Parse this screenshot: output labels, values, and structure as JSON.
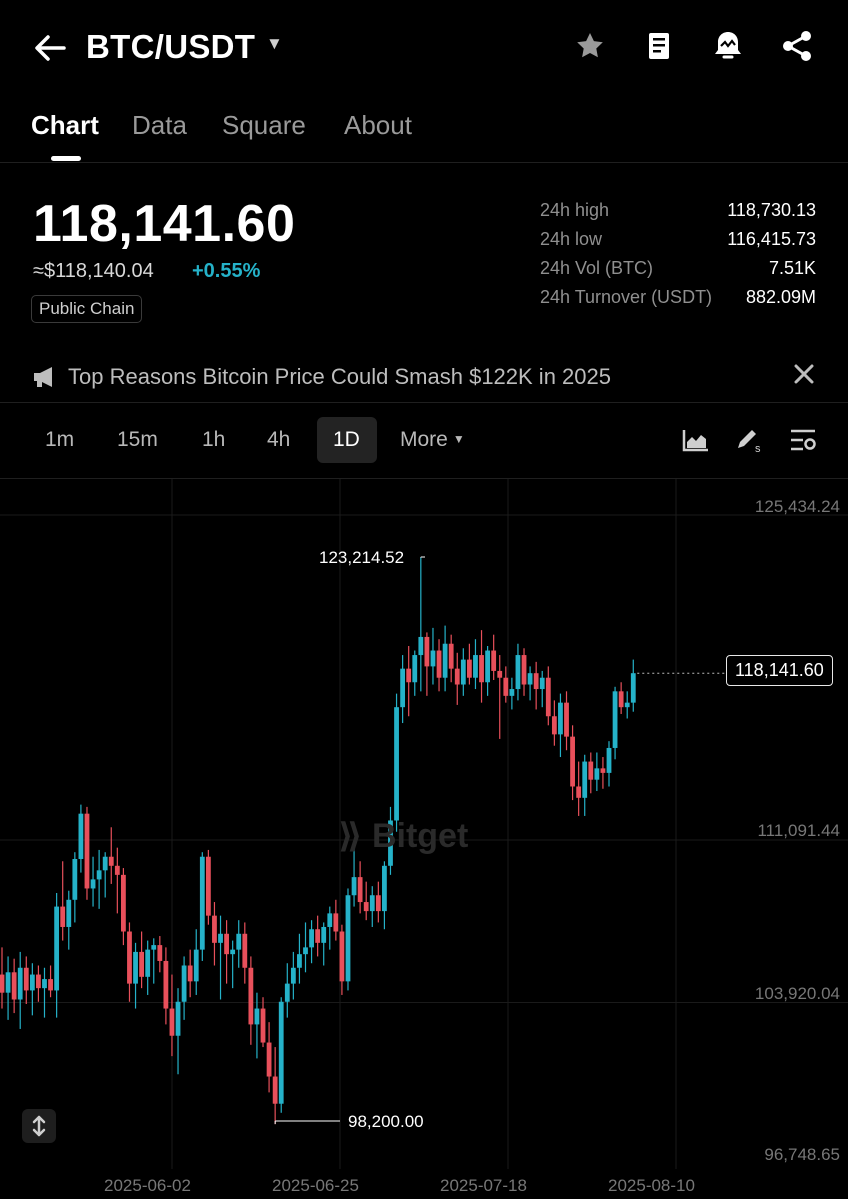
{
  "header": {
    "pair": "BTC/USDT",
    "icons": [
      "back-arrow-icon",
      "dropdown-caret-icon",
      "star-icon",
      "notes-icon",
      "alert-icon",
      "share-icon"
    ]
  },
  "tabs": [
    {
      "label": "Chart",
      "active": true
    },
    {
      "label": "Data",
      "active": false
    },
    {
      "label": "Square",
      "active": false
    },
    {
      "label": "About",
      "active": false
    }
  ],
  "price": {
    "last": "118,141.60",
    "usd_equiv": "≈$118,140.04",
    "change": "+0.55%",
    "tag": "Public Chain"
  },
  "stats": [
    {
      "label": "24h high",
      "value": "118,730.13"
    },
    {
      "label": "24h low",
      "value": "116,415.73"
    },
    {
      "label": "24h Vol (BTC)",
      "value": "7.51K"
    },
    {
      "label": "24h Turnover (USDT)",
      "value": "882.09M"
    }
  ],
  "news": {
    "headline": "Top Reasons Bitcoin Price Could Smash $122K in 2025"
  },
  "intervals": [
    {
      "label": "1m",
      "active": false
    },
    {
      "label": "15m",
      "active": false
    },
    {
      "label": "1h",
      "active": false
    },
    {
      "label": "4h",
      "active": false
    },
    {
      "label": "1D",
      "active": true
    }
  ],
  "more_label": "More",
  "watermark": "Bitget",
  "colors": {
    "up": "#25b2c9",
    "down": "#e8505b",
    "bg": "#000000",
    "grid": "#1a1a1a"
  },
  "chart_data": {
    "type": "candlestick",
    "y_axis_ticks": [
      "125,434.24",
      "111,091.44",
      "103,920.04",
      "96,748.65"
    ],
    "x_axis_ticks": [
      "2025-06-02",
      "2025-06-25",
      "2025-07-18",
      "2025-08-10"
    ],
    "ylim": [
      96748.65,
      125434.24
    ],
    "current_price_label": "118,141.60",
    "max_annotation": "123,214.52",
    "min_annotation": "98,200.00",
    "candles": [
      {
        "o": 104800,
        "h": 106000,
        "l": 103300,
        "c": 104000
      },
      {
        "o": 104000,
        "h": 105600,
        "l": 102800,
        "c": 104900
      },
      {
        "o": 104900,
        "h": 105500,
        "l": 103100,
        "c": 103700
      },
      {
        "o": 103700,
        "h": 105800,
        "l": 102400,
        "c": 105100
      },
      {
        "o": 105100,
        "h": 105600,
        "l": 103500,
        "c": 104100
      },
      {
        "o": 104100,
        "h": 105300,
        "l": 103000,
        "c": 104800
      },
      {
        "o": 104800,
        "h": 105200,
        "l": 103600,
        "c": 104200
      },
      {
        "o": 104200,
        "h": 105100,
        "l": 102900,
        "c": 104600
      },
      {
        "o": 104600,
        "h": 105200,
        "l": 103800,
        "c": 104100
      },
      {
        "o": 104100,
        "h": 108400,
        "l": 102900,
        "c": 107800
      },
      {
        "o": 107800,
        "h": 109800,
        "l": 106300,
        "c": 106900
      },
      {
        "o": 106900,
        "h": 108500,
        "l": 105900,
        "c": 108100
      },
      {
        "o": 108100,
        "h": 110200,
        "l": 107100,
        "c": 109900
      },
      {
        "o": 109900,
        "h": 112300,
        "l": 109300,
        "c": 111900
      },
      {
        "o": 111900,
        "h": 112200,
        "l": 108100,
        "c": 108600
      },
      {
        "o": 108600,
        "h": 110000,
        "l": 107800,
        "c": 109000
      },
      {
        "o": 109000,
        "h": 110300,
        "l": 107700,
        "c": 109400
      },
      {
        "o": 109400,
        "h": 110200,
        "l": 108200,
        "c": 110000
      },
      {
        "o": 110000,
        "h": 111300,
        "l": 108800,
        "c": 109600
      },
      {
        "o": 109600,
        "h": 110400,
        "l": 107500,
        "c": 109200
      },
      {
        "o": 109200,
        "h": 109500,
        "l": 106100,
        "c": 106700
      },
      {
        "o": 106700,
        "h": 107100,
        "l": 103600,
        "c": 104400
      },
      {
        "o": 104400,
        "h": 106200,
        "l": 103300,
        "c": 105800
      },
      {
        "o": 105800,
        "h": 106700,
        "l": 104200,
        "c": 104700
      },
      {
        "o": 104700,
        "h": 106300,
        "l": 103900,
        "c": 105900
      },
      {
        "o": 105900,
        "h": 106400,
        "l": 104400,
        "c": 106100
      },
      {
        "o": 106100,
        "h": 106500,
        "l": 104900,
        "c": 105400
      },
      {
        "o": 105400,
        "h": 106000,
        "l": 102600,
        "c": 103300
      },
      {
        "o": 103300,
        "h": 104800,
        "l": 101200,
        "c": 102100
      },
      {
        "o": 102100,
        "h": 104200,
        "l": 100400,
        "c": 103600
      },
      {
        "o": 103600,
        "h": 105600,
        "l": 102800,
        "c": 105200
      },
      {
        "o": 105200,
        "h": 105900,
        "l": 103800,
        "c": 104500
      },
      {
        "o": 104500,
        "h": 106800,
        "l": 103900,
        "c": 105900
      },
      {
        "o": 105900,
        "h": 110200,
        "l": 105400,
        "c": 110000
      },
      {
        "o": 110000,
        "h": 110300,
        "l": 107000,
        "c": 107400
      },
      {
        "o": 107400,
        "h": 108000,
        "l": 105200,
        "c": 106200
      },
      {
        "o": 106200,
        "h": 107400,
        "l": 103700,
        "c": 106600
      },
      {
        "o": 106600,
        "h": 107200,
        "l": 104400,
        "c": 105700
      },
      {
        "o": 105700,
        "h": 106300,
        "l": 104200,
        "c": 105900
      },
      {
        "o": 105900,
        "h": 107200,
        "l": 105100,
        "c": 106600
      },
      {
        "o": 106600,
        "h": 107100,
        "l": 104400,
        "c": 105100
      },
      {
        "o": 105100,
        "h": 105600,
        "l": 101700,
        "c": 102600
      },
      {
        "o": 102600,
        "h": 104000,
        "l": 101100,
        "c": 103300
      },
      {
        "o": 103300,
        "h": 103800,
        "l": 101600,
        "c": 101800
      },
      {
        "o": 101800,
        "h": 102700,
        "l": 99600,
        "c": 100300
      },
      {
        "o": 100300,
        "h": 101600,
        "l": 98200,
        "c": 99100
      },
      {
        "o": 99100,
        "h": 103800,
        "l": 98700,
        "c": 103600
      },
      {
        "o": 103600,
        "h": 105300,
        "l": 102900,
        "c": 104400
      },
      {
        "o": 104400,
        "h": 105800,
        "l": 103700,
        "c": 105100
      },
      {
        "o": 105100,
        "h": 106600,
        "l": 104400,
        "c": 105700
      },
      {
        "o": 105700,
        "h": 107100,
        "l": 104900,
        "c": 106000
      },
      {
        "o": 106000,
        "h": 107200,
        "l": 105300,
        "c": 106800
      },
      {
        "o": 106800,
        "h": 107400,
        "l": 105600,
        "c": 106200
      },
      {
        "o": 106200,
        "h": 107100,
        "l": 105200,
        "c": 106900
      },
      {
        "o": 106900,
        "h": 107800,
        "l": 105900,
        "c": 107500
      },
      {
        "o": 107500,
        "h": 108100,
        "l": 106300,
        "c": 106700
      },
      {
        "o": 106700,
        "h": 107000,
        "l": 103900,
        "c": 104500
      },
      {
        "o": 104500,
        "h": 108600,
        "l": 104100,
        "c": 108300
      },
      {
        "o": 108300,
        "h": 110400,
        "l": 107800,
        "c": 109100
      },
      {
        "o": 109100,
        "h": 109800,
        "l": 107500,
        "c": 108000
      },
      {
        "o": 108000,
        "h": 108900,
        "l": 107200,
        "c": 107600
      },
      {
        "o": 107600,
        "h": 108700,
        "l": 106900,
        "c": 108300
      },
      {
        "o": 108300,
        "h": 108900,
        "l": 107100,
        "c": 107600
      },
      {
        "o": 107600,
        "h": 109800,
        "l": 106800,
        "c": 109600
      },
      {
        "o": 109600,
        "h": 112200,
        "l": 109200,
        "c": 111600
      },
      {
        "o": 111600,
        "h": 117200,
        "l": 111100,
        "c": 116600
      },
      {
        "o": 116600,
        "h": 118900,
        "l": 115900,
        "c": 118300
      },
      {
        "o": 118300,
        "h": 119300,
        "l": 116200,
        "c": 117700
      },
      {
        "o": 117700,
        "h": 119100,
        "l": 117100,
        "c": 118900
      },
      {
        "o": 118900,
        "h": 123200,
        "l": 117300,
        "c": 119700
      },
      {
        "o": 119700,
        "h": 119900,
        "l": 117100,
        "c": 118400
      },
      {
        "o": 118400,
        "h": 120100,
        "l": 117600,
        "c": 119100
      },
      {
        "o": 119100,
        "h": 119600,
        "l": 117300,
        "c": 117900
      },
      {
        "o": 117900,
        "h": 120200,
        "l": 117300,
        "c": 119400
      },
      {
        "o": 119400,
        "h": 119800,
        "l": 117700,
        "c": 118300
      },
      {
        "o": 118300,
        "h": 119000,
        "l": 116700,
        "c": 117600
      },
      {
        "o": 117600,
        "h": 119200,
        "l": 117100,
        "c": 118700
      },
      {
        "o": 118700,
        "h": 119400,
        "l": 117600,
        "c": 117900
      },
      {
        "o": 117900,
        "h": 119600,
        "l": 117400,
        "c": 118900
      },
      {
        "o": 118900,
        "h": 120000,
        "l": 116800,
        "c": 117700
      },
      {
        "o": 117700,
        "h": 119300,
        "l": 117100,
        "c": 119100
      },
      {
        "o": 119100,
        "h": 119800,
        "l": 117800,
        "c": 118200
      },
      {
        "o": 118200,
        "h": 118900,
        "l": 115200,
        "c": 117900
      },
      {
        "o": 117900,
        "h": 118400,
        "l": 116800,
        "c": 117100
      },
      {
        "o": 117100,
        "h": 117900,
        "l": 116500,
        "c": 117400
      },
      {
        "o": 117400,
        "h": 119400,
        "l": 116900,
        "c": 118900
      },
      {
        "o": 118900,
        "h": 119200,
        "l": 117100,
        "c": 117600
      },
      {
        "o": 117600,
        "h": 118400,
        "l": 116900,
        "c": 118100
      },
      {
        "o": 118100,
        "h": 118600,
        "l": 116500,
        "c": 117400
      },
      {
        "o": 117400,
        "h": 118200,
        "l": 116600,
        "c": 117900
      },
      {
        "o": 117900,
        "h": 118400,
        "l": 115800,
        "c": 116200
      },
      {
        "o": 116200,
        "h": 116900,
        "l": 114900,
        "c": 115400
      },
      {
        "o": 115400,
        "h": 117200,
        "l": 114400,
        "c": 116800
      },
      {
        "o": 116800,
        "h": 117300,
        "l": 114700,
        "c": 115300
      },
      {
        "o": 115300,
        "h": 115800,
        "l": 112500,
        "c": 113100
      },
      {
        "o": 113100,
        "h": 114200,
        "l": 111800,
        "c": 112600
      },
      {
        "o": 112600,
        "h": 114500,
        "l": 111800,
        "c": 114200
      },
      {
        "o": 114200,
        "h": 114600,
        "l": 112800,
        "c": 113400
      },
      {
        "o": 113400,
        "h": 114600,
        "l": 112900,
        "c": 113900
      },
      {
        "o": 113900,
        "h": 114400,
        "l": 113000,
        "c": 113700
      },
      {
        "o": 113700,
        "h": 115100,
        "l": 113100,
        "c": 114800
      },
      {
        "o": 114800,
        "h": 117500,
        "l": 114300,
        "c": 117300
      },
      {
        "o": 117300,
        "h": 117700,
        "l": 116300,
        "c": 116600
      },
      {
        "o": 116600,
        "h": 117300,
        "l": 116100,
        "c": 116800
      },
      {
        "o": 116800,
        "h": 118700,
        "l": 116400,
        "c": 118100
      }
    ]
  }
}
